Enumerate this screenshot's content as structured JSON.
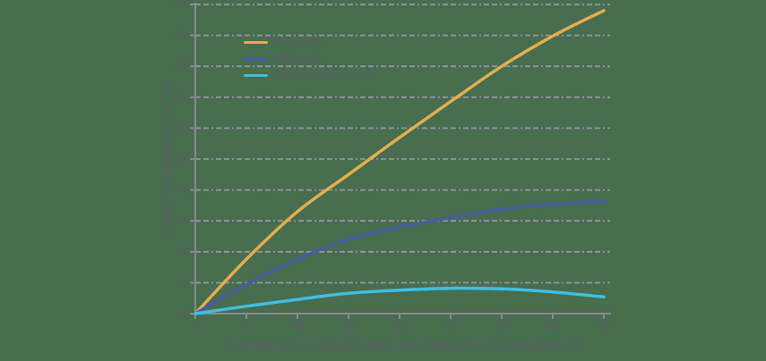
{
  "colors": {
    "background": "#486D4F",
    "grid": "#95939A",
    "axis": "#898792",
    "text": "#5F5E66"
  },
  "chart_data": {
    "type": "line",
    "title": "",
    "xlabel": "% of MSCI US converted to MSCI FM or MSCI EM or MSCI World Ex US",
    "ylabel": "Sharpe Ratio Improvement (%)",
    "xlim": [
      0,
      40
    ],
    "ylim": [
      0,
      50
    ],
    "xticks": [
      0,
      5,
      10,
      15,
      20,
      25,
      30,
      35,
      40
    ],
    "yticks": [
      0,
      5,
      10,
      15,
      20,
      25,
      30,
      35,
      40,
      45,
      50
    ],
    "grid": "horizontal-dashed",
    "legend_position": "upper-left-inside",
    "x": [
      0,
      5,
      10,
      15,
      20,
      25,
      30,
      35,
      40
    ],
    "series": [
      {
        "name": "MSCI FM",
        "color": "#E3AD50",
        "values": [
          0,
          8.8,
          16.5,
          22.5,
          28.5,
          34.3,
          40.0,
          44.9,
          49.0
        ]
      },
      {
        "name": "MSCI EM",
        "color": "#4A5C9E",
        "values": [
          0,
          4.7,
          8.8,
          12.0,
          14.0,
          15.5,
          16.9,
          17.7,
          18.1
        ]
      },
      {
        "name": "MSCI World Ex US",
        "color": "#40BFE2",
        "values": [
          0,
          1.2,
          2.3,
          3.3,
          3.8,
          4.1,
          4.0,
          3.5,
          2.7
        ]
      }
    ]
  }
}
